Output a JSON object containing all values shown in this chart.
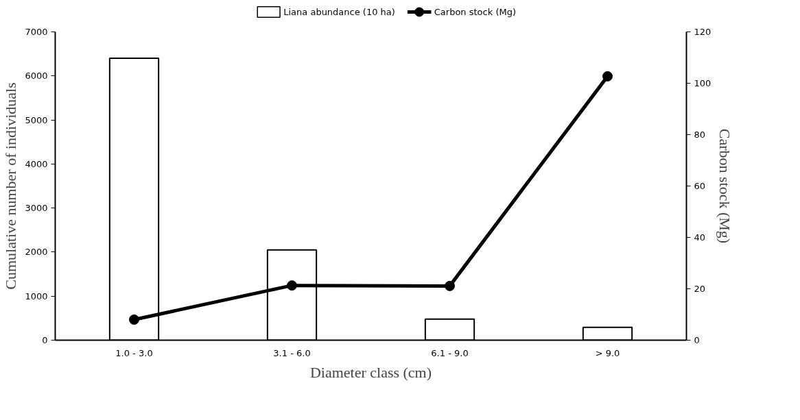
{
  "chart_data": {
    "type": "bar",
    "xlabel": "Diameter class (cm)",
    "ylabel": "Cumulative number of individuals",
    "y2label": "Carbon stock (Mg)",
    "categories": [
      "1.0 - 3.0",
      "3.1 - 6.0",
      "6.1 - 9.0",
      "> 9.0"
    ],
    "series": [
      {
        "name": "Liana abundance (10 ha)",
        "color": "#ffffff",
        "values": [
          6400,
          2050,
          480,
          290
        ]
      },
      {
        "name": "Carbon stock (Mg)",
        "type": "line",
        "axis": "y2",
        "color": "#000000",
        "marker": "circle",
        "values": [
          8,
          21.3,
          21.1,
          102.7
        ]
      }
    ],
    "ylim": [
      0,
      7000
    ],
    "yticks": [
      0,
      1000,
      2000,
      3000,
      4000,
      5000,
      6000,
      7000
    ],
    "y2lim": [
      0,
      120
    ],
    "y2ticks": [
      0,
      20,
      40,
      60,
      80,
      100,
      120
    ],
    "grid": false,
    "legend": "top"
  }
}
